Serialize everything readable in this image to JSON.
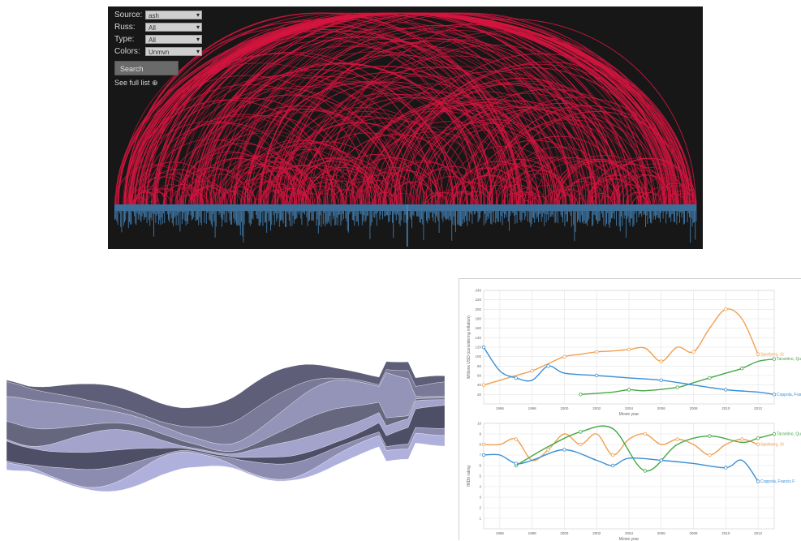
{
  "arc_panel": {
    "controls": [
      {
        "label": "Source:",
        "value": "ash"
      },
      {
        "label": "Russ:",
        "value": "All"
      },
      {
        "label": "Type:",
        "value": "All"
      },
      {
        "label": "Colors:",
        "value": "Unmvn"
      }
    ],
    "search_label": "Search",
    "full_list_label": "See full list ⊕",
    "colors": {
      "background": "#171717",
      "arc": "#d6153f",
      "bar": "#3d6f99"
    }
  },
  "streamgraph": {
    "colors": [
      "#5e5e78",
      "#7a7a98",
      "#9494b8",
      "#66667f",
      "#a3a3cc",
      "#4e4e66",
      "#8c8cb0",
      "#b0b0dd"
    ]
  },
  "chart_data": [
    {
      "type": "line",
      "title": "",
      "xlabel": "Movie year",
      "ylabel": "Millions USD (considering inflation)",
      "xlim": [
        1995,
        2013
      ],
      "ylim": [
        0,
        240
      ],
      "x_ticks": [
        1996,
        1998,
        2000,
        2002,
        2004,
        2006,
        2008,
        2010,
        2012
      ],
      "y_ticks": [
        20,
        40,
        60,
        80,
        100,
        120,
        140,
        160,
        180,
        200,
        220,
        240
      ],
      "grid": true,
      "series": [
        {
          "name": "Spielberg, St",
          "color": "#f0a050",
          "x": [
            1995,
            1997,
            1998,
            1999,
            2000,
            2001,
            2002,
            2003,
            2004,
            2005,
            2006,
            2007,
            2008,
            2009,
            2010,
            2011,
            2012
          ],
          "y": [
            40,
            60,
            70,
            85,
            100,
            105,
            110,
            112,
            115,
            118,
            90,
            120,
            110,
            160,
            200,
            180,
            105
          ]
        },
        {
          "name": "Tarantino, Qu",
          "color": "#45a845",
          "x": [
            2001,
            2003,
            2004,
            2005,
            2007,
            2008,
            2009,
            2010,
            2011,
            2012,
            2013
          ],
          "y": [
            20,
            25,
            30,
            28,
            35,
            45,
            55,
            65,
            75,
            90,
            95
          ]
        },
        {
          "name": "Coppola, Francis F",
          "color": "#3b8fd4",
          "x": [
            1995,
            1996,
            1997,
            1998,
            1999,
            2000,
            2002,
            2004,
            2006,
            2008,
            2010,
            2012,
            2013
          ],
          "y": [
            120,
            70,
            55,
            50,
            80,
            65,
            60,
            55,
            50,
            40,
            30,
            25,
            20
          ]
        }
      ]
    },
    {
      "type": "line",
      "title": "",
      "xlabel": "Movie year",
      "ylabel": "IMDb rating",
      "xlim": [
        1995,
        2013
      ],
      "ylim": [
        0,
        10
      ],
      "x_ticks": [
        1996,
        1998,
        2000,
        2002,
        2004,
        2006,
        2008,
        2010,
        2012
      ],
      "y_ticks": [
        1,
        2,
        3,
        4,
        5,
        6,
        7,
        8,
        9,
        10
      ],
      "grid": true,
      "series": [
        {
          "name": "Spielberg, St",
          "color": "#f0a050",
          "x": [
            1995,
            1996,
            1997,
            1998,
            1999,
            2000,
            2001,
            2002,
            2003,
            2004,
            2005,
            2006,
            2007,
            2008,
            2009,
            2010,
            2011,
            2012
          ],
          "y": [
            8,
            8,
            8.5,
            6.5,
            7.5,
            9,
            8,
            9,
            7,
            8.5,
            9,
            8,
            8.5,
            8,
            7,
            8,
            8.5,
            8
          ]
        },
        {
          "name": "Tarantino, Qu",
          "color": "#45a845",
          "x": [
            1997,
            1999,
            2001,
            2003,
            2005,
            2007,
            2009,
            2011,
            2012,
            2013
          ],
          "y": [
            6,
            7.8,
            9.2,
            9.5,
            5.5,
            8,
            8.8,
            8.2,
            8.6,
            9
          ]
        },
        {
          "name": "Coppola, Francis F",
          "color": "#3b8fd4",
          "x": [
            1995,
            1996,
            1997,
            1998,
            2000,
            2002,
            2003,
            2004,
            2006,
            2008,
            2010,
            2011,
            2012
          ],
          "y": [
            7,
            7,
            6.2,
            6.5,
            7.5,
            6.5,
            6,
            6.7,
            6.5,
            6.2,
            5.8,
            6.5,
            4.5
          ]
        }
      ]
    }
  ]
}
